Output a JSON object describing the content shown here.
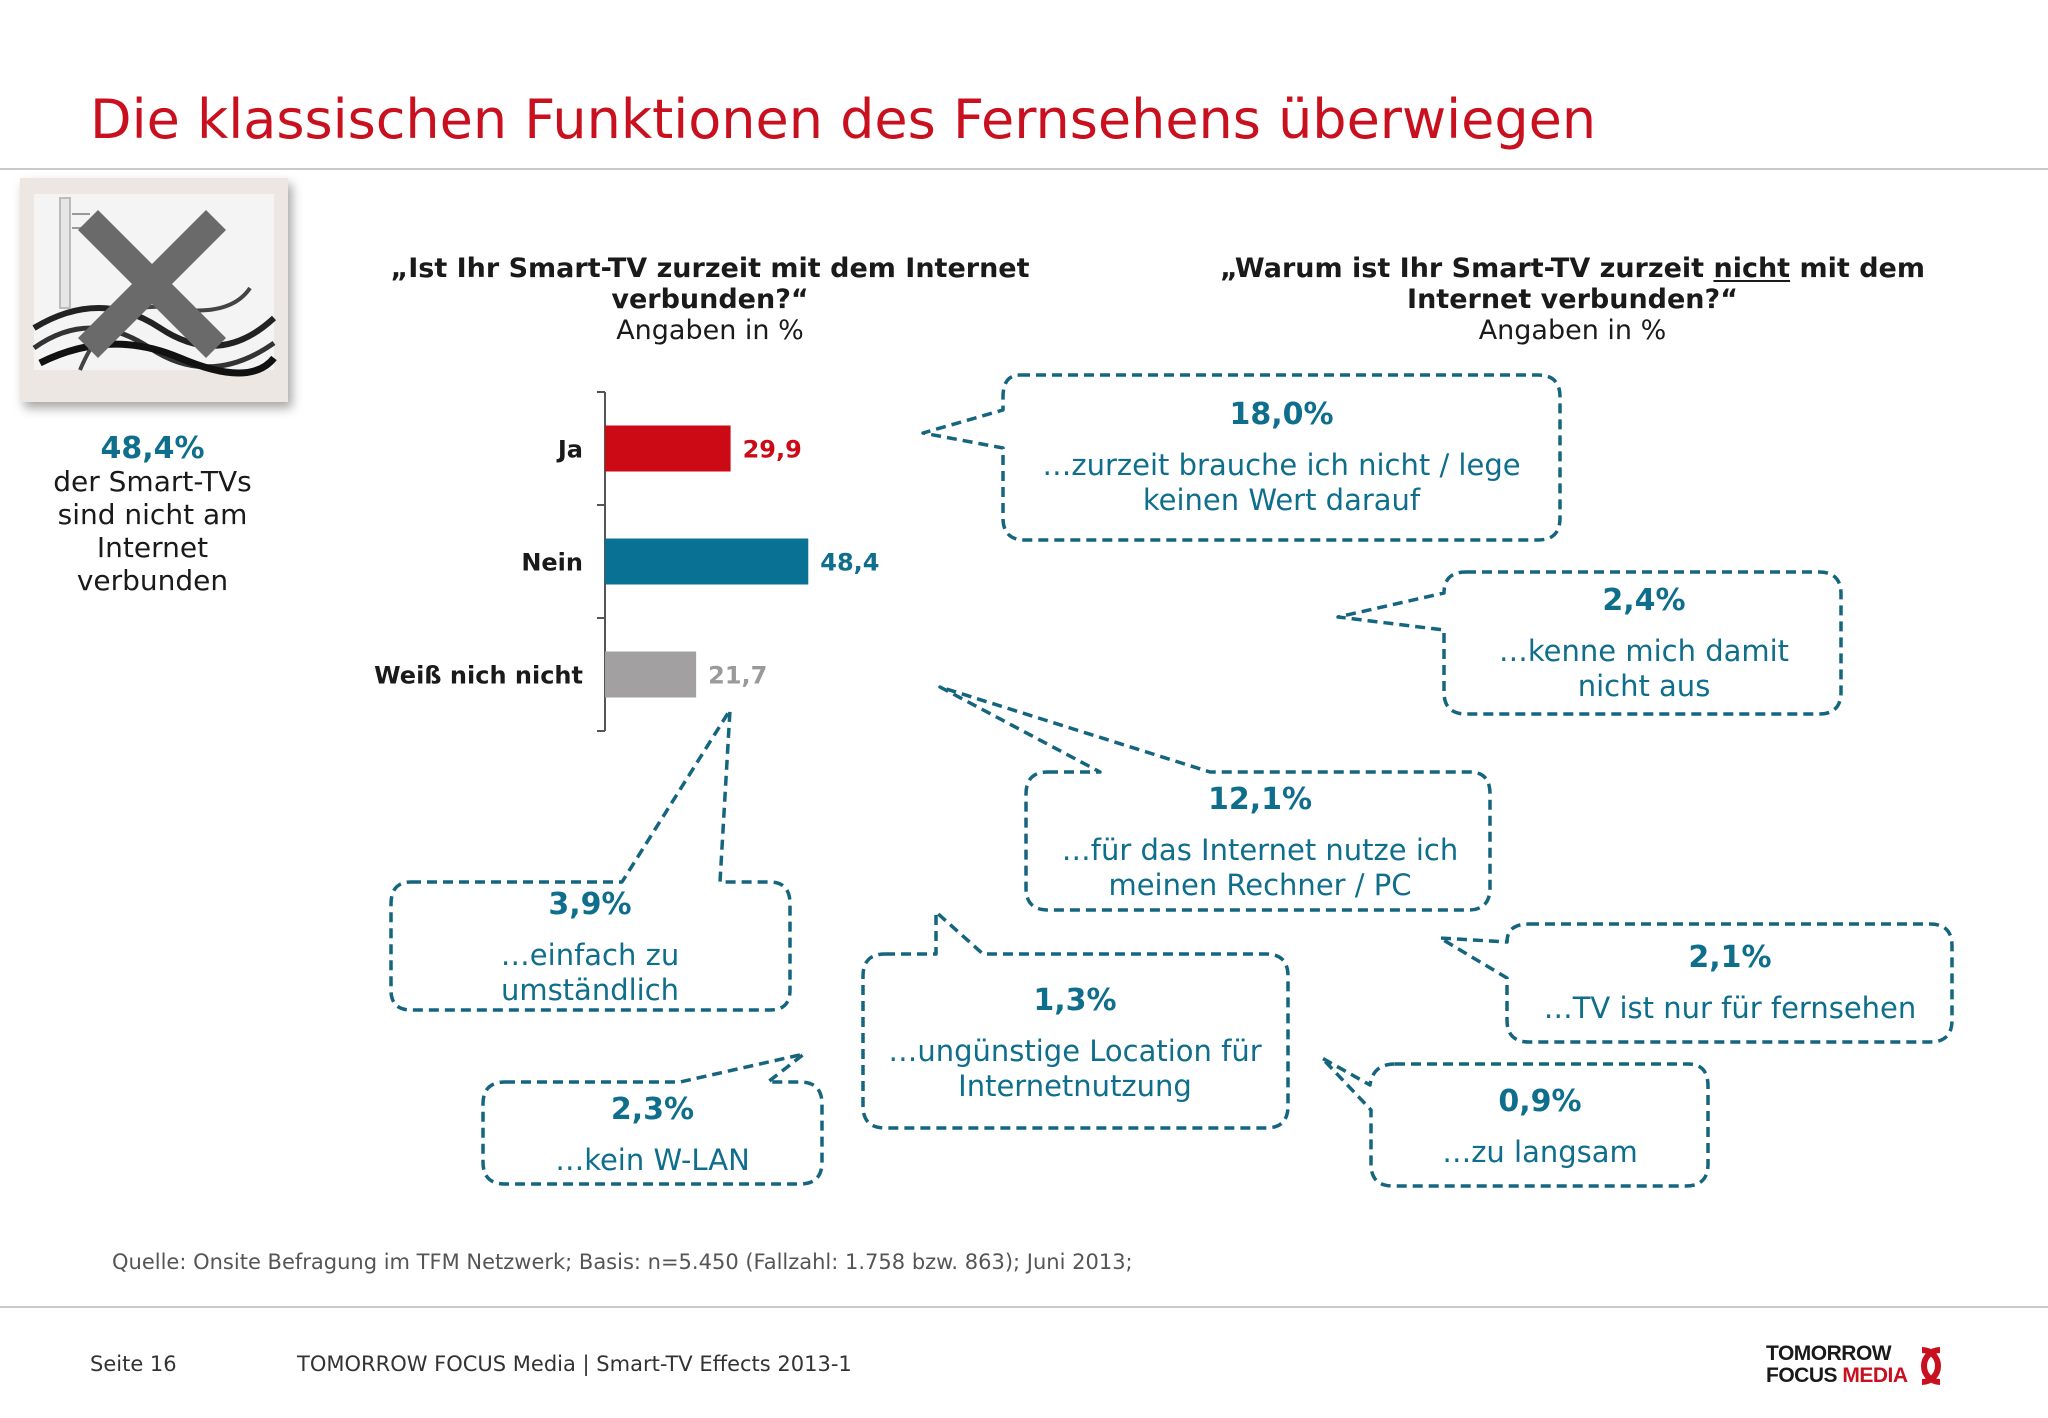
{
  "title": "Die klassischen Funktionen des Fernsehens überwiegen",
  "question_left": {
    "text": "„Ist Ihr Smart-TV zurzeit mit dem Internet verbunden?“",
    "subtitle": "Angaben in %"
  },
  "question_right": {
    "text_before": "„Warum ist Ihr Smart-TV zurzeit ",
    "text_underlined": "nicht",
    "text_after": " mit dem Internet verbunden?“",
    "subtitle": "Angaben in %"
  },
  "side_note": {
    "value": "48,4%",
    "text": "der Smart-TVs sind nicht am Internet verbunden"
  },
  "chart_data": {
    "type": "bar",
    "orientation": "horizontal",
    "categories": [
      "Ja",
      "Nein",
      "Weiß nich nicht"
    ],
    "values": [
      29.9,
      48.4,
      21.7
    ],
    "labels": [
      "29,9",
      "48,4",
      "21,7"
    ],
    "colors": [
      "#cc0a16",
      "#087194",
      "#a3a0a2"
    ],
    "label_colors": [
      "#cc0a16",
      "#0f6e8c",
      "#9a9a9a"
    ]
  },
  "reasons": [
    {
      "value": "18,0%",
      "text": "…zurzeit brauche ich nicht / lege keinen Wert darauf"
    },
    {
      "value": "2,4%",
      "text": "…kenne mich damit nicht aus"
    },
    {
      "value": "12,1%",
      "text": "…für das Internet nutze ich meinen Rechner / PC"
    },
    {
      "value": "3,9%",
      "text": "…einfach zu umständlich"
    },
    {
      "value": "2,1%",
      "text": "…TV ist nur für fernsehen"
    },
    {
      "value": "1,3%",
      "text": "…ungünstige Location für Internetnutzung"
    },
    {
      "value": "2,3%",
      "text": "…kein W-LAN"
    },
    {
      "value": "0,9%",
      "text": "…zu langsam"
    }
  ],
  "source": "Quelle: Onsite Befragung im TFM Netzwerk; Basis: n=5.450 (Fallzahl: 1.758 bzw. 863); Juni 2013;",
  "footer": {
    "page": "Seite 16",
    "text": "TOMORROW FOCUS Media  |  Smart-TV Effects 2013-1"
  },
  "logo": {
    "line1": "TOMORROW",
    "line2a": "FOCUS ",
    "line2b": "MEDIA"
  },
  "colors": {
    "title": "#c8101f",
    "accent": "#0f6e8c"
  }
}
